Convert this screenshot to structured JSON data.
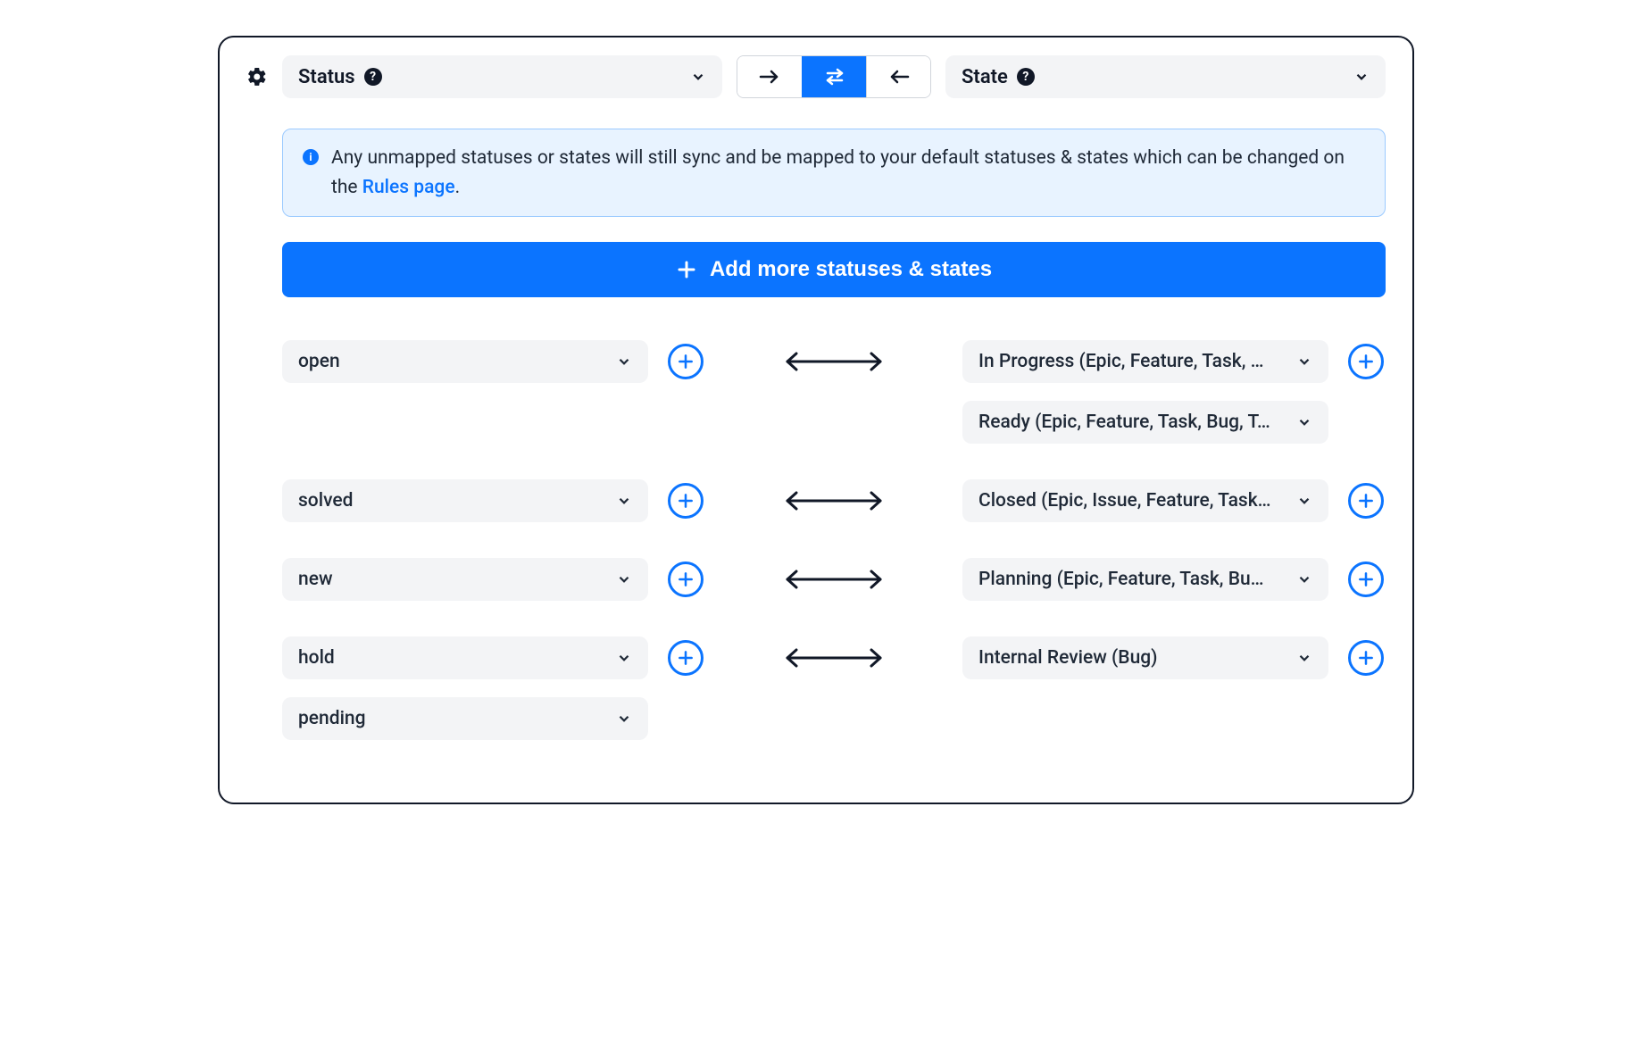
{
  "header": {
    "left_dropdown_label": "Status",
    "right_dropdown_label": "State"
  },
  "info": {
    "text_before_link": "Any unmapped statuses or states will still sync and be mapped to your default statuses & states which can be changed on the ",
    "link_text": "Rules page",
    "text_after_link": "."
  },
  "add_button_label": "Add more statuses & states",
  "mappings": [
    {
      "left": [
        "open"
      ],
      "right": [
        "In Progress (Epic, Feature, Task, …",
        "Ready (Epic, Feature, Task, Bug, T…"
      ]
    },
    {
      "left": [
        "solved"
      ],
      "right": [
        "Closed (Epic, Issue, Feature, Task…"
      ]
    },
    {
      "left": [
        "new"
      ],
      "right": [
        "Planning (Epic, Feature, Task, Bu…"
      ]
    },
    {
      "left": [
        "hold",
        "pending"
      ],
      "right": [
        "Internal Review (Bug)"
      ]
    }
  ],
  "colors": {
    "primary": "#0b74ff",
    "pill_bg": "#f3f4f6",
    "info_bg": "#e8f3ff",
    "info_border": "#9bcaff",
    "text": "#111827"
  }
}
